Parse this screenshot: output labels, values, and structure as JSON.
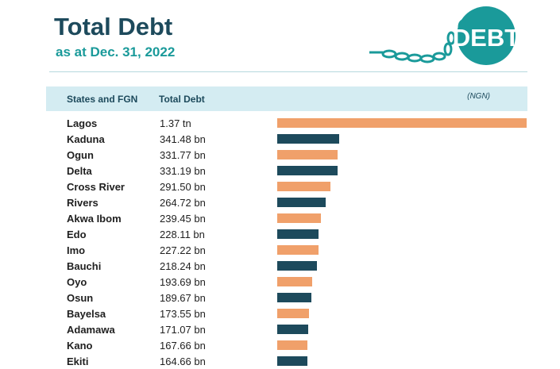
{
  "header": {
    "title": "Total Debt",
    "subtitle": "as at Dec. 31, 2022",
    "logo_text": "DEBT"
  },
  "table_header": {
    "col_state": "States and FGN",
    "col_debt": "Total Debt",
    "unit": "(NGN)"
  },
  "colors": {
    "orange": "#f0a06a",
    "navy": "#1d4a5c",
    "teal": "#1a9a9a",
    "header_bg": "#d4ecf2"
  },
  "chart_data": {
    "type": "bar",
    "orientation": "horizontal",
    "title": "Total Debt",
    "subtitle": "as at Dec. 31, 2022",
    "unit": "(NGN)",
    "categories": [
      "Lagos",
      "Kaduna",
      "Ogun",
      "Delta",
      "Cross River",
      "Rivers",
      "Akwa Ibom",
      "Edo",
      "Imo",
      "Bauchi",
      "Oyo",
      "Osun",
      "Bayelsa",
      "Adamawa",
      "Kano",
      "Ekiti"
    ],
    "labels": [
      "1.37 tn",
      "341.48 bn",
      "331.77 bn",
      "331.19 bn",
      "291.50 bn",
      "264.72 bn",
      "239.45 bn",
      "228.11 bn",
      "227.22 bn",
      "218.24 bn",
      "193.69 bn",
      "189.67 bn",
      "173.55 bn",
      "171.07 bn",
      "167.66 bn",
      "164.66 bn"
    ],
    "values": [
      1370,
      341.48,
      331.77,
      331.19,
      291.5,
      264.72,
      239.45,
      228.11,
      227.22,
      218.24,
      193.69,
      189.67,
      173.55,
      171.07,
      167.66,
      164.66
    ],
    "value_units": "bn NGN",
    "bar_colors": [
      "orange",
      "navy",
      "orange",
      "navy",
      "orange",
      "navy",
      "orange",
      "navy",
      "orange",
      "navy",
      "orange",
      "navy",
      "orange",
      "navy",
      "orange",
      "navy"
    ]
  }
}
